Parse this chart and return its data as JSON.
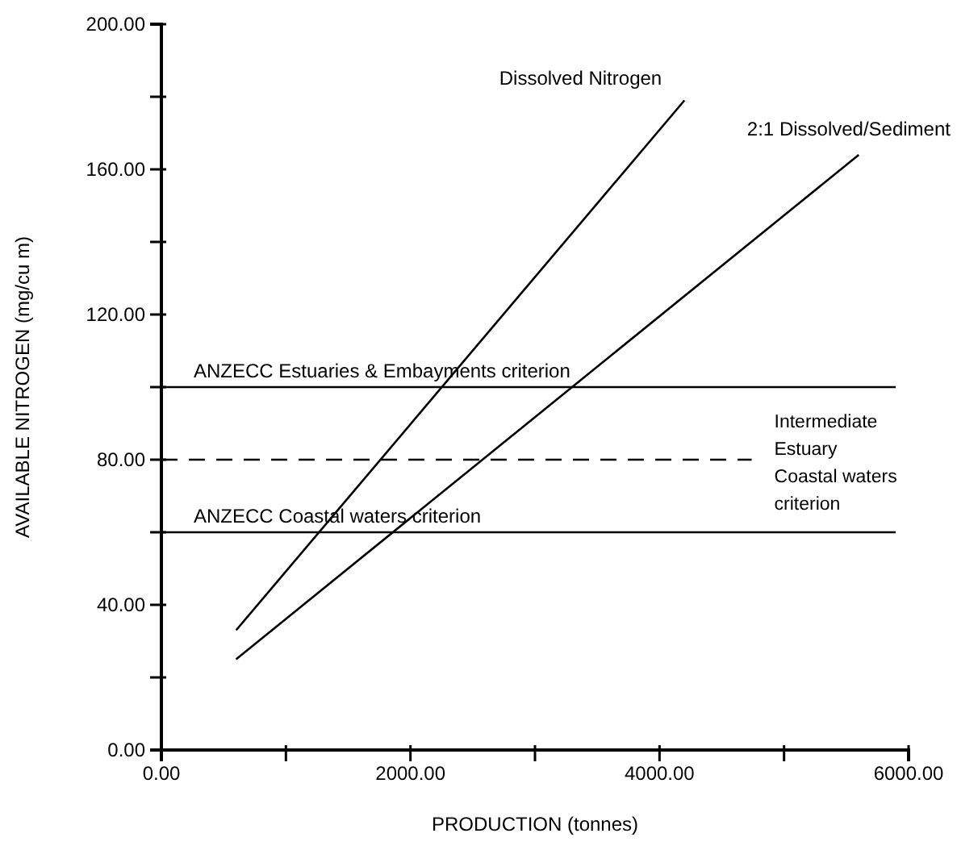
{
  "chart_data": {
    "type": "line",
    "xlabel": "PRODUCTION (tonnes)",
    "ylabel": "AVAILABLE NITROGEN (mg/cu m)",
    "series": [
      {
        "name": "Dissolved Nitrogen",
        "color": "#000000",
        "x": [
          600,
          4200
        ],
        "values": [
          33,
          179
        ]
      },
      {
        "name": "2:1 Dissolved/Sediment",
        "color": "#000000",
        "x": [
          600,
          5600
        ],
        "values": [
          25,
          164
        ]
      }
    ],
    "xlim": [
      0,
      6000
    ],
    "ylim": [
      0,
      200
    ],
    "xticks": [
      {
        "value": 0,
        "label": "0.00"
      },
      {
        "value": 1000,
        "label": null
      },
      {
        "value": 2000,
        "label": "2000.00"
      },
      {
        "value": 3000,
        "label": null
      },
      {
        "value": 4000,
        "label": "4000.00"
      },
      {
        "value": 5000,
        "label": null
      },
      {
        "value": 6000,
        "label": "6000.00"
      }
    ],
    "yticks": [
      {
        "value": 0,
        "label": "0.00"
      },
      {
        "value": 20,
        "label": null
      },
      {
        "value": 40,
        "label": "40.00"
      },
      {
        "value": 60,
        "label": null
      },
      {
        "value": 80,
        "label": "80.00"
      },
      {
        "value": 100,
        "label": null
      },
      {
        "value": 120,
        "label": "120.00"
      },
      {
        "value": 140,
        "label": null
      },
      {
        "value": 160,
        "label": "160.00"
      },
      {
        "value": 180,
        "label": null
      },
      {
        "value": 200,
        "label": "200.00"
      }
    ],
    "ref_lines": [
      {
        "axis": "y",
        "value": 100,
        "label": "ANZECC Estuaries & Embayments criterion",
        "line_style": "solid",
        "color": "#000000"
      },
      {
        "axis": "y",
        "value": 80,
        "label": "Intermediate Estuary Coastal waters criterion",
        "line_style": "dashed",
        "color": "#000000"
      },
      {
        "axis": "y",
        "value": 60,
        "label": "ANZECC Coastal waters criterion",
        "line_style": "solid",
        "color": "#000000"
      }
    ],
    "grid": false,
    "legend": false,
    "marker": "none",
    "line_style": "solid"
  }
}
